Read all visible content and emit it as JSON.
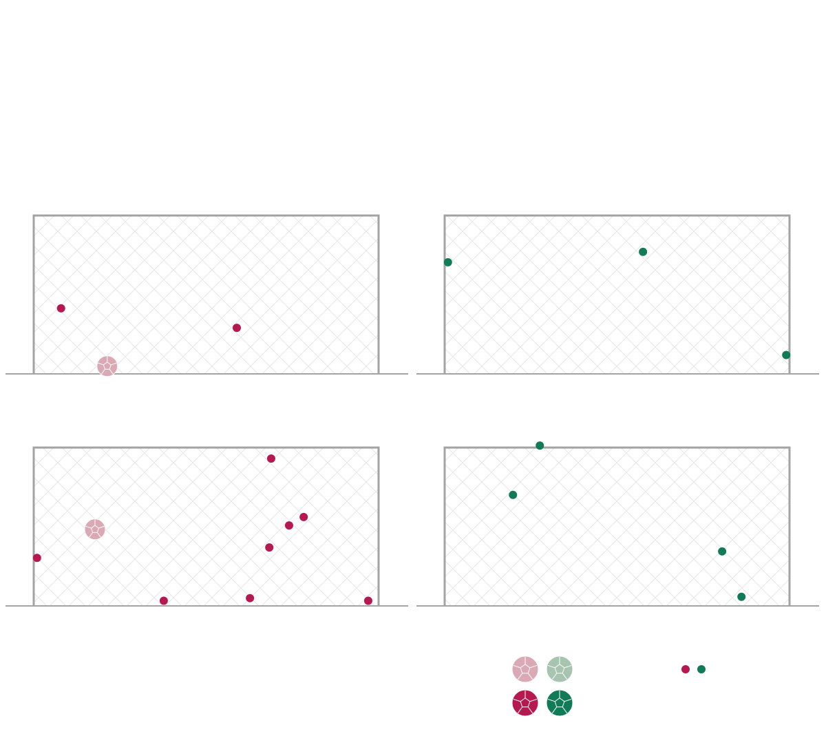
{
  "chart_data": [
    {
      "type": "scatter",
      "xlim": [
        0,
        7.32
      ],
      "ylim": [
        0,
        2.44
      ],
      "series": [
        {
          "color": "#b5194f",
          "marker": "dot",
          "x": [
            0.58,
            4.31
          ],
          "values": [
            1.01,
            0.71
          ]
        },
        {
          "color": "#dba9b4",
          "marker": "ball",
          "x": [
            1.56
          ],
          "values": [
            0.12
          ]
        }
      ]
    },
    {
      "type": "scatter",
      "xlim": [
        0,
        7.32
      ],
      "ylim": [
        0,
        2.44
      ],
      "series": [
        {
          "color": "#117a57",
          "marker": "dot",
          "x": [
            0.07,
            4.21,
            7.25
          ],
          "values": [
            1.72,
            1.88,
            0.29
          ]
        },
        {
          "color": "#a7c4b1",
          "marker": "ball",
          "x": [],
          "values": []
        }
      ]
    },
    {
      "type": "scatter",
      "xlim": [
        0,
        7.32
      ],
      "ylim": [
        0,
        2.44
      ],
      "series": [
        {
          "color": "#b5194f",
          "marker": "dot",
          "x": [
            5.04,
            5.73,
            5.42,
            5.0,
            0.07,
            2.76,
            4.59,
            7.1
          ],
          "values": [
            2.27,
            1.37,
            1.24,
            0.9,
            0.74,
            0.08,
            0.12,
            0.08
          ]
        },
        {
          "color": "#dba9b4",
          "marker": "ball",
          "x": [
            1.3
          ],
          "values": [
            1.18
          ]
        }
      ]
    },
    {
      "type": "scatter",
      "xlim": [
        0,
        7.32
      ],
      "ylim": [
        0,
        2.44
      ],
      "series": [
        {
          "color": "#117a57",
          "marker": "dot",
          "x": [
            2.02,
            1.45,
            5.89,
            6.3
          ],
          "values": [
            2.47,
            1.71,
            0.84,
            0.14
          ]
        },
        {
          "color": "#a7c4b1",
          "marker": "ball",
          "x": [],
          "values": []
        }
      ]
    }
  ]
}
